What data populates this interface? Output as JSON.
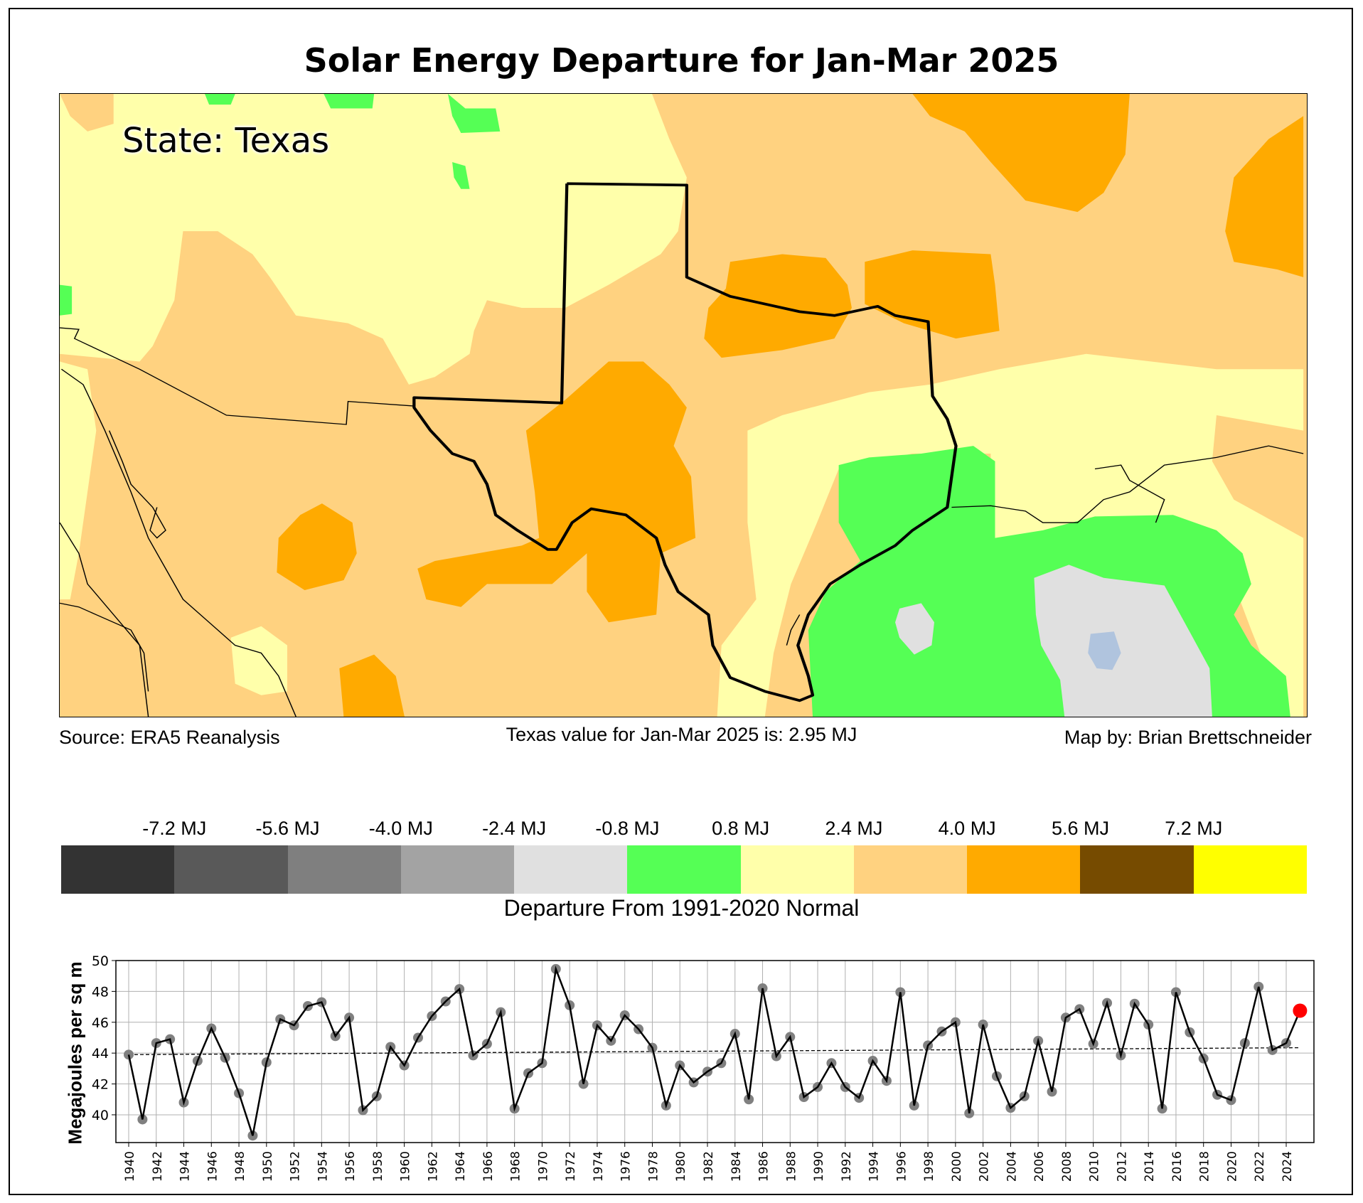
{
  "title": "Solar Energy Departure for Jan-Mar 2025",
  "map": {
    "state_label": "State: Texas",
    "source": "Source: ERA5 Reanalysis",
    "state_value": "Texas value for Jan-Mar 2025 is: 2.95 MJ",
    "credit": "Map by: Brian Brettschneider"
  },
  "colorbar": {
    "title": "Departure From 1991-2020 Normal",
    "labels": [
      "-7.2 MJ",
      "-5.6 MJ",
      "-4.0 MJ",
      "-2.4 MJ",
      "-0.8 MJ",
      "0.8 MJ",
      "2.4 MJ",
      "4.0 MJ",
      "5.6 MJ",
      "7.2 MJ"
    ],
    "colors": [
      "#333333",
      "#595959",
      "#7f7f7f",
      "#a3a3a3",
      "#e0e0e0",
      "#55ff55",
      "#ffffaa",
      "#ffd280",
      "#ffaa00",
      "#764b00",
      "#ffff00"
    ]
  },
  "chart_data": {
    "type": "line",
    "ylabel": "Megajoules per sq m",
    "xlabel": "",
    "ylim": [
      38.2,
      50
    ],
    "yticks": [
      40,
      42,
      44,
      46,
      48,
      50
    ],
    "xticks": [
      1940,
      1942,
      1944,
      1946,
      1948,
      1950,
      1952,
      1954,
      1956,
      1958,
      1960,
      1962,
      1964,
      1966,
      1968,
      1970,
      1972,
      1974,
      1976,
      1978,
      1980,
      1982,
      1984,
      1986,
      1988,
      1990,
      1992,
      1994,
      1996,
      1998,
      2000,
      2002,
      2004,
      2006,
      2008,
      2010,
      2012,
      2014,
      2016,
      2018,
      2020,
      2022,
      2024
    ],
    "grid": true,
    "x": [
      1940,
      1941,
      1942,
      1943,
      1944,
      1945,
      1946,
      1947,
      1948,
      1949,
      1950,
      1951,
      1952,
      1953,
      1954,
      1955,
      1956,
      1957,
      1958,
      1959,
      1960,
      1961,
      1962,
      1963,
      1964,
      1965,
      1966,
      1967,
      1968,
      1969,
      1970,
      1971,
      1972,
      1973,
      1974,
      1975,
      1976,
      1977,
      1978,
      1979,
      1980,
      1981,
      1982,
      1983,
      1984,
      1985,
      1986,
      1987,
      1988,
      1989,
      1990,
      1991,
      1992,
      1993,
      1994,
      1995,
      1996,
      1997,
      1998,
      1999,
      2000,
      2001,
      2002,
      2003,
      2004,
      2005,
      2006,
      2007,
      2008,
      2009,
      2010,
      2011,
      2012,
      2013,
      2014,
      2015,
      2016,
      2017,
      2018,
      2019,
      2020,
      2021,
      2022,
      2023,
      2024,
      2025
    ],
    "values": [
      43.9,
      39.7,
      44.65,
      44.9,
      40.8,
      43.5,
      45.6,
      43.7,
      41.4,
      38.65,
      43.4,
      46.2,
      45.8,
      47.05,
      47.3,
      45.1,
      46.3,
      40.3,
      41.2,
      44.4,
      43.2,
      45.0,
      46.4,
      47.35,
      48.15,
      43.85,
      44.6,
      46.65,
      40.4,
      42.7,
      43.35,
      49.45,
      47.1,
      42.0,
      45.8,
      44.8,
      46.45,
      45.55,
      44.35,
      40.6,
      43.2,
      42.1,
      42.8,
      43.35,
      45.25,
      41.0,
      48.2,
      43.8,
      45.05,
      41.15,
      41.8,
      43.35,
      41.8,
      41.1,
      43.5,
      42.2,
      47.95,
      40.6,
      44.5,
      45.4,
      46.0,
      40.1,
      45.85,
      42.5,
      40.45,
      41.2,
      44.8,
      41.5,
      46.3,
      46.85,
      44.6,
      47.25,
      43.85,
      47.2,
      45.85,
      40.4,
      47.95,
      45.35,
      43.65,
      41.3,
      40.95,
      44.65,
      48.3,
      44.2,
      44.65,
      46.75
    ],
    "trend": {
      "x": [
        1940,
        2025
      ],
      "values": [
        43.9,
        44.35
      ]
    },
    "highlight": {
      "x": 2025,
      "value": 46.75,
      "color": "#ff0000"
    },
    "line_color": "#000000",
    "marker_color": "#808080"
  }
}
